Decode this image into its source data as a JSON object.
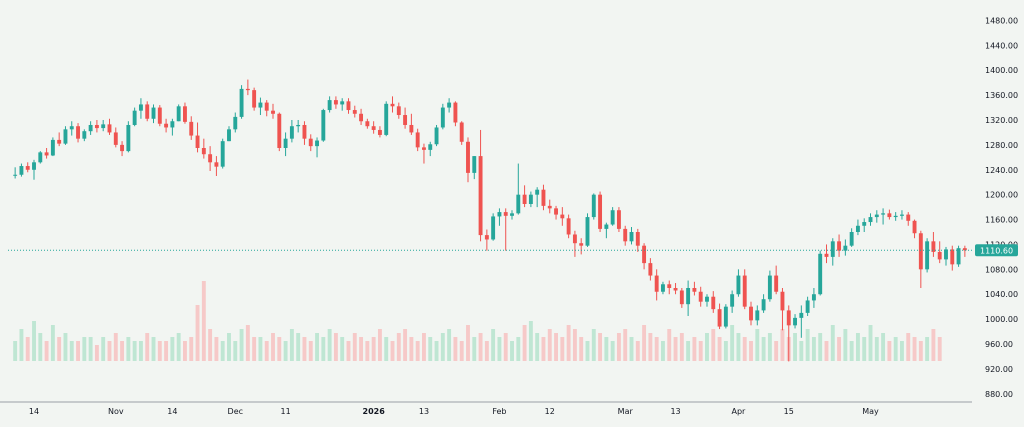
{
  "colors": {
    "background": "#f2f5f2",
    "up": "#26a69a",
    "down": "#ef5350",
    "up_volume": "#bfe6d3",
    "down_volume": "#f6c9c8",
    "last_price_line": "#26a69a",
    "axis_text": "#131722",
    "axis_line": "#9aa0a6"
  },
  "chart_data": {
    "type": "candlestick",
    "ylim": [
      870,
      1500
    ],
    "y_ticks": [
      880,
      920,
      960,
      1000,
      1040,
      1080,
      1120,
      1160,
      1200,
      1240,
      1280,
      1320,
      1360,
      1400,
      1440,
      1480
    ],
    "y_tick_labels": [
      "880.00",
      "920.00",
      "960.00",
      "1000.00",
      "1040.00",
      "1080.00",
      "1120.00",
      "1160.00",
      "1200.00",
      "1240.00",
      "1280.00",
      "1320.00",
      "1360.00",
      "1400.00",
      "1440.00",
      "1480.00"
    ],
    "x_ticks": [
      {
        "label": "14",
        "index": 3,
        "bold": false
      },
      {
        "label": "Nov",
        "index": 16,
        "bold": false
      },
      {
        "label": "14",
        "index": 25,
        "bold": false
      },
      {
        "label": "Dec",
        "index": 35,
        "bold": false
      },
      {
        "label": "11",
        "index": 43,
        "bold": false
      },
      {
        "label": "2026",
        "index": 57,
        "bold": true
      },
      {
        "label": "13",
        "index": 65,
        "bold": false
      },
      {
        "label": "Feb",
        "index": 77,
        "bold": false
      },
      {
        "label": "12",
        "index": 85,
        "bold": false
      },
      {
        "label": "Mar",
        "index": 97,
        "bold": false
      },
      {
        "label": "13",
        "index": 105,
        "bold": false
      },
      {
        "label": "Apr",
        "index": 115,
        "bold": false
      },
      {
        "label": "15",
        "index": 123,
        "bold": false
      },
      {
        "label": "May",
        "index": 136,
        "bold": false
      }
    ],
    "last_price": 1110.6,
    "last_price_label": "1110.60",
    "candles": [
      [
        1231,
        1244,
        1226,
        1232
      ],
      [
        1232,
        1250,
        1229,
        1246
      ],
      [
        1246,
        1252,
        1236,
        1240
      ],
      [
        1240,
        1256,
        1224,
        1252
      ],
      [
        1252,
        1270,
        1250,
        1268
      ],
      [
        1268,
        1275,
        1258,
        1263
      ],
      [
        1263,
        1292,
        1262,
        1288
      ],
      [
        1288,
        1300,
        1278,
        1282
      ],
      [
        1282,
        1310,
        1280,
        1305
      ],
      [
        1305,
        1318,
        1295,
        1310
      ],
      [
        1310,
        1315,
        1284,
        1290
      ],
      [
        1290,
        1305,
        1286,
        1302
      ],
      [
        1302,
        1318,
        1296,
        1312
      ],
      [
        1312,
        1320,
        1300,
        1307
      ],
      [
        1307,
        1320,
        1302,
        1313
      ],
      [
        1313,
        1322,
        1296,
        1300
      ],
      [
        1300,
        1308,
        1276,
        1280
      ],
      [
        1280,
        1286,
        1262,
        1270
      ],
      [
        1270,
        1318,
        1268,
        1312
      ],
      [
        1312,
        1340,
        1310,
        1335
      ],
      [
        1335,
        1355,
        1322,
        1345
      ],
      [
        1345,
        1350,
        1318,
        1322
      ],
      [
        1322,
        1345,
        1315,
        1340
      ],
      [
        1340,
        1344,
        1310,
        1314
      ],
      [
        1314,
        1322,
        1300,
        1308
      ],
      [
        1308,
        1322,
        1295,
        1318
      ],
      [
        1318,
        1345,
        1318,
        1342
      ],
      [
        1342,
        1348,
        1314,
        1317
      ],
      [
        1317,
        1326,
        1288,
        1295
      ],
      [
        1295,
        1316,
        1268,
        1275
      ],
      [
        1275,
        1290,
        1258,
        1265
      ],
      [
        1265,
        1278,
        1238,
        1252
      ],
      [
        1252,
        1262,
        1230,
        1245
      ],
      [
        1245,
        1290,
        1242,
        1286
      ],
      [
        1286,
        1310,
        1286,
        1305
      ],
      [
        1305,
        1332,
        1300,
        1325
      ],
      [
        1325,
        1376,
        1322,
        1370
      ],
      [
        1370,
        1385,
        1360,
        1368
      ],
      [
        1368,
        1372,
        1335,
        1340
      ],
      [
        1340,
        1356,
        1328,
        1348
      ],
      [
        1348,
        1352,
        1326,
        1335
      ],
      [
        1335,
        1346,
        1322,
        1330
      ],
      [
        1330,
        1332,
        1270,
        1275
      ],
      [
        1275,
        1300,
        1262,
        1290
      ],
      [
        1290,
        1320,
        1284,
        1310
      ],
      [
        1310,
        1320,
        1300,
        1312
      ],
      [
        1312,
        1318,
        1280,
        1290
      ],
      [
        1290,
        1297,
        1270,
        1278
      ],
      [
        1278,
        1292,
        1260,
        1287
      ],
      [
        1287,
        1338,
        1285,
        1336
      ],
      [
        1336,
        1358,
        1332,
        1352
      ],
      [
        1352,
        1358,
        1338,
        1345
      ],
      [
        1345,
        1355,
        1335,
        1350
      ],
      [
        1350,
        1355,
        1330,
        1336
      ],
      [
        1336,
        1343,
        1324,
        1330
      ],
      [
        1330,
        1338,
        1312,
        1318
      ],
      [
        1318,
        1322,
        1306,
        1310
      ],
      [
        1310,
        1318,
        1298,
        1304
      ],
      [
        1304,
        1310,
        1292,
        1296
      ],
      [
        1296,
        1350,
        1294,
        1346
      ],
      [
        1346,
        1358,
        1332,
        1342
      ],
      [
        1342,
        1348,
        1322,
        1328
      ],
      [
        1328,
        1340,
        1306,
        1312
      ],
      [
        1312,
        1330,
        1296,
        1300
      ],
      [
        1300,
        1306,
        1270,
        1276
      ],
      [
        1276,
        1282,
        1250,
        1272
      ],
      [
        1272,
        1285,
        1262,
        1281
      ],
      [
        1281,
        1312,
        1278,
        1308
      ],
      [
        1308,
        1346,
        1305,
        1340
      ],
      [
        1340,
        1355,
        1332,
        1348
      ],
      [
        1348,
        1350,
        1310,
        1316
      ],
      [
        1316,
        1318,
        1280,
        1285
      ],
      [
        1285,
        1292,
        1220,
        1235
      ],
      [
        1235,
        1262,
        1225,
        1262
      ],
      [
        1262,
        1304,
        1125,
        1135
      ],
      [
        1135,
        1144,
        1110,
        1128
      ],
      [
        1128,
        1170,
        1126,
        1165
      ],
      [
        1165,
        1178,
        1150,
        1172
      ],
      [
        1172,
        1178,
        1110,
        1166
      ],
      [
        1166,
        1175,
        1160,
        1170
      ],
      [
        1170,
        1250,
        1168,
        1200
      ],
      [
        1200,
        1215,
        1180,
        1185
      ],
      [
        1185,
        1205,
        1180,
        1200
      ],
      [
        1200,
        1212,
        1180,
        1208
      ],
      [
        1208,
        1216,
        1175,
        1182
      ],
      [
        1182,
        1192,
        1170,
        1178
      ],
      [
        1178,
        1182,
        1160,
        1168
      ],
      [
        1168,
        1180,
        1150,
        1162
      ],
      [
        1162,
        1168,
        1130,
        1136
      ],
      [
        1136,
        1142,
        1100,
        1122
      ],
      [
        1122,
        1130,
        1104,
        1118
      ],
      [
        1118,
        1170,
        1116,
        1164
      ],
      [
        1164,
        1202,
        1160,
        1200
      ],
      [
        1200,
        1205,
        1140,
        1145
      ],
      [
        1145,
        1155,
        1130,
        1152
      ],
      [
        1152,
        1180,
        1150,
        1175
      ],
      [
        1175,
        1180,
        1140,
        1145
      ],
      [
        1145,
        1150,
        1118,
        1125
      ],
      [
        1125,
        1148,
        1120,
        1140
      ],
      [
        1140,
        1145,
        1108,
        1118
      ],
      [
        1118,
        1122,
        1080,
        1090
      ],
      [
        1090,
        1098,
        1062,
        1070
      ],
      [
        1070,
        1080,
        1030,
        1044
      ],
      [
        1044,
        1060,
        1040,
        1056
      ],
      [
        1056,
        1062,
        1040,
        1050
      ],
      [
        1050,
        1058,
        1040,
        1046
      ],
      [
        1046,
        1050,
        1018,
        1024
      ],
      [
        1024,
        1062,
        1005,
        1050
      ],
      [
        1050,
        1060,
        1038,
        1044
      ],
      [
        1044,
        1052,
        1020,
        1028
      ],
      [
        1028,
        1040,
        1020,
        1036
      ],
      [
        1036,
        1045,
        1010,
        1016
      ],
      [
        1016,
        1025,
        984,
        988
      ],
      [
        988,
        1024,
        985,
        1020
      ],
      [
        1020,
        1046,
        1010,
        1040
      ],
      [
        1040,
        1080,
        1036,
        1070
      ],
      [
        1070,
        1080,
        1016,
        1020
      ],
      [
        1020,
        1028,
        990,
        998
      ],
      [
        998,
        1022,
        990,
        1014
      ],
      [
        1014,
        1040,
        1010,
        1032
      ],
      [
        1032,
        1078,
        1028,
        1070
      ],
      [
        1070,
        1086,
        1040,
        1044
      ],
      [
        1044,
        1050,
        982,
        1014
      ],
      [
        1014,
        1022,
        932,
        990
      ],
      [
        990,
        1008,
        985,
        1002
      ],
      [
        1002,
        1022,
        970,
        1010
      ],
      [
        1010,
        1036,
        1005,
        1030
      ],
      [
        1030,
        1050,
        1018,
        1040
      ],
      [
        1040,
        1110,
        1038,
        1105
      ],
      [
        1105,
        1120,
        1090,
        1100
      ],
      [
        1100,
        1130,
        1086,
        1125
      ],
      [
        1125,
        1136,
        1100,
        1110
      ],
      [
        1110,
        1128,
        1102,
        1118
      ],
      [
        1118,
        1146,
        1116,
        1140
      ],
      [
        1140,
        1160,
        1135,
        1150
      ],
      [
        1150,
        1162,
        1140,
        1156
      ],
      [
        1156,
        1170,
        1150,
        1164
      ],
      [
        1164,
        1175,
        1155,
        1168
      ],
      [
        1168,
        1178,
        1152,
        1170
      ],
      [
        1170,
        1176,
        1160,
        1164
      ],
      [
        1164,
        1172,
        1158,
        1166
      ],
      [
        1166,
        1175,
        1160,
        1168
      ],
      [
        1168,
        1172,
        1150,
        1158
      ],
      [
        1158,
        1160,
        1130,
        1138
      ],
      [
        1138,
        1142,
        1050,
        1080
      ],
      [
        1080,
        1130,
        1075,
        1125
      ],
      [
        1125,
        1140,
        1100,
        1108
      ],
      [
        1108,
        1125,
        1090,
        1096
      ],
      [
        1096,
        1116,
        1086,
        1112
      ],
      [
        1112,
        1118,
        1078,
        1088
      ],
      [
        1088,
        1118,
        1084,
        1114
      ],
      [
        1114,
        1118,
        1100,
        1110.6
      ]
    ],
    "volumes": [
      5,
      8,
      6,
      10,
      7,
      5,
      9,
      6,
      7,
      5,
      5,
      6,
      6,
      4,
      6,
      5,
      7,
      5,
      6,
      5,
      5,
      7,
      6,
      5,
      5,
      6,
      7,
      5,
      6,
      14,
      20,
      8,
      6,
      5,
      7,
      5,
      8,
      9,
      6,
      6,
      5,
      7,
      6,
      5,
      8,
      7,
      6,
      5,
      7,
      6,
      8,
      7,
      6,
      5,
      7,
      6,
      5,
      6,
      8,
      6,
      5,
      7,
      8,
      6,
      5,
      7,
      6,
      5,
      7,
      8,
      6,
      5,
      9,
      6,
      7,
      5,
      8,
      6,
      7,
      5,
      6,
      9,
      10,
      7,
      6,
      8,
      7,
      6,
      9,
      8,
      6,
      5,
      8,
      7,
      6,
      5,
      7,
      8,
      6,
      5,
      9,
      7,
      6,
      5,
      8,
      6,
      7,
      5,
      6,
      5,
      7,
      8,
      6,
      5,
      9,
      7,
      6,
      5,
      8,
      6,
      7,
      5,
      8,
      6,
      7,
      5,
      8,
      6,
      7,
      5,
      9,
      6,
      8,
      5,
      7,
      6,
      9,
      6,
      7,
      5,
      6,
      5,
      7,
      6,
      5,
      6,
      8,
      6
    ]
  }
}
